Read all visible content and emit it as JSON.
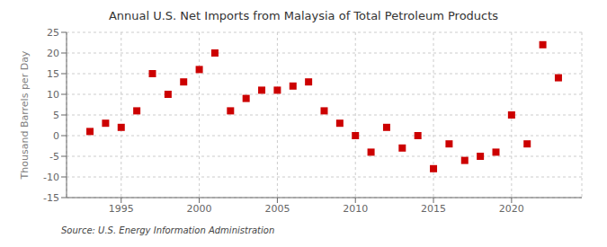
{
  "chart_data": {
    "type": "scatter",
    "title": "Annual U.S. Net Imports from Malaysia of Total Petroleum Products",
    "y_label": "Thousand Barrels per Day",
    "annotation": "Source: U.S. Energy Information Administration",
    "x": [
      1993,
      1994,
      1995,
      1996,
      1997,
      1998,
      1999,
      2000,
      2001,
      2002,
      2003,
      2004,
      2005,
      2006,
      2007,
      2008,
      2009,
      2010,
      2011,
      2012,
      2013,
      2014,
      2015,
      2016,
      2017,
      2018,
      2019,
      2020,
      2021,
      2022,
      2023
    ],
    "values": [
      1,
      3,
      2,
      6,
      15,
      10,
      13,
      16,
      20,
      6,
      9,
      11,
      11,
      12,
      13,
      6,
      3,
      0,
      -4,
      2,
      -3,
      0,
      -8,
      -2,
      -6,
      -5,
      -4,
      5,
      -2,
      22,
      14
    ],
    "color": "#cc0000",
    "marker": "square",
    "xlim": [
      1991.5,
      2024.5
    ],
    "xticks": [
      1995,
      2000,
      2005,
      2010,
      2015,
      2020
    ],
    "ylim": [
      -15,
      25
    ],
    "yticks": [
      -15,
      -10,
      -5,
      0,
      5,
      10,
      15,
      20,
      25
    ],
    "grid": true
  }
}
